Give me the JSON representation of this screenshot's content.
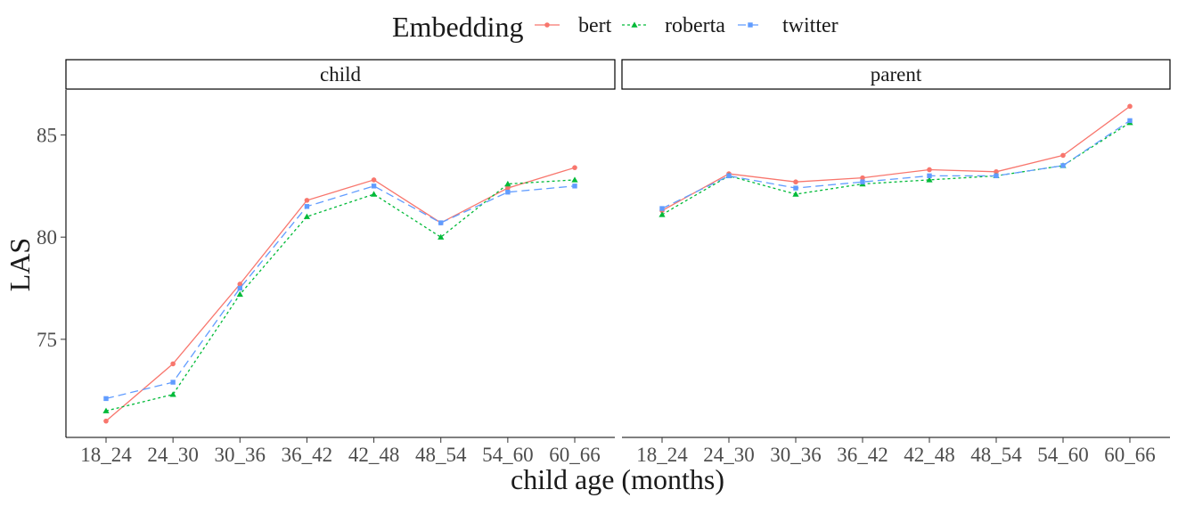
{
  "chart_data": {
    "type": "line",
    "legend": {
      "title": "Embedding",
      "position": "top"
    },
    "xlabel": "child age (months)",
    "ylabel": "LAS",
    "categories": [
      "18_24",
      "24_30",
      "30_36",
      "36_42",
      "42_48",
      "48_54",
      "54_60",
      "60_66"
    ],
    "ylim": [
      70.2,
      87.2
    ],
    "yticks": [
      75,
      80,
      85
    ],
    "grid": false,
    "series_styles": [
      {
        "name": "bert",
        "color": "#F8766D",
        "marker": "circle",
        "dash": ""
      },
      {
        "name": "roberta",
        "color": "#00BA38",
        "marker": "triangle",
        "dash": "3,3"
      },
      {
        "name": "twitter",
        "color": "#619CFF",
        "marker": "square",
        "dash": "9,5"
      }
    ],
    "panels": [
      {
        "label": "child",
        "series": [
          {
            "name": "bert",
            "values": [
              71.0,
              73.8,
              77.7,
              81.8,
              82.8,
              80.7,
              82.4,
              83.4
            ]
          },
          {
            "name": "roberta",
            "values": [
              71.5,
              72.3,
              77.2,
              81.0,
              82.1,
              80.0,
              82.6,
              82.8
            ]
          },
          {
            "name": "twitter",
            "values": [
              72.1,
              72.9,
              77.5,
              81.5,
              82.5,
              80.7,
              82.2,
              82.5
            ]
          }
        ]
      },
      {
        "label": "parent",
        "series": [
          {
            "name": "bert",
            "values": [
              81.3,
              83.1,
              82.7,
              82.9,
              83.3,
              83.2,
              84.0,
              86.4
            ]
          },
          {
            "name": "roberta",
            "values": [
              81.1,
              83.0,
              82.1,
              82.6,
              82.8,
              83.0,
              83.5,
              85.6
            ]
          },
          {
            "name": "twitter",
            "values": [
              81.4,
              83.0,
              82.4,
              82.7,
              83.0,
              83.0,
              83.5,
              85.7
            ]
          }
        ]
      }
    ]
  }
}
